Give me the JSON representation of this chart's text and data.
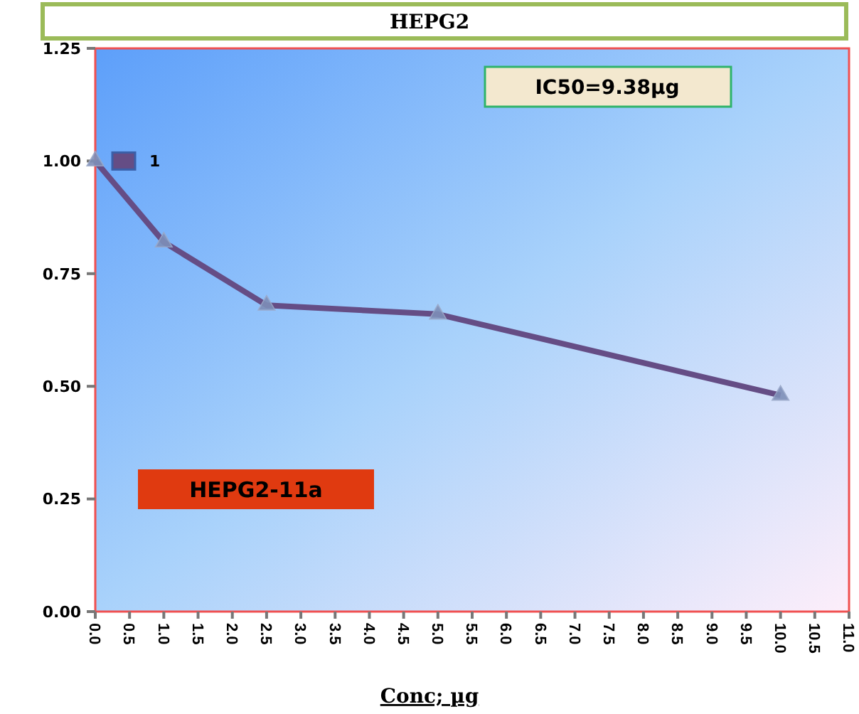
{
  "chart_data": {
    "type": "line",
    "title": "HEPG2",
    "xlabel": "Conc; µg",
    "x": [
      0,
      1,
      2.5,
      5,
      10
    ],
    "series": [
      {
        "name": "1",
        "color": "#654d85",
        "values": [
          1.0,
          0.82,
          0.68,
          0.66,
          0.48
        ]
      }
    ],
    "xlim": [
      0,
      11
    ],
    "xticks": [
      {
        "value": 0,
        "label": "0.0"
      },
      0.5,
      {
        "value": 1,
        "label": "1.0"
      },
      1.5,
      {
        "value": 2,
        "label": "2.0"
      },
      2.5,
      {
        "value": 3,
        "label": "3.0"
      },
      3.5,
      {
        "value": 4,
        "label": "4.0"
      },
      4.5,
      {
        "value": 5,
        "label": "5.0"
      },
      5.5,
      {
        "value": 6,
        "label": "6.0"
      },
      6.5,
      {
        "value": 7,
        "label": "7.0"
      },
      7.5,
      {
        "value": 8,
        "label": "8.0"
      },
      8.5,
      {
        "value": 9,
        "label": "9.0"
      },
      9.5,
      {
        "value": 10,
        "label": "10.0"
      },
      10.5,
      {
        "value": 11,
        "label": "11.0"
      }
    ],
    "ylim": [
      0,
      1.25
    ],
    "yticks": [
      {
        "value": 0,
        "label": "0.00"
      },
      0.25,
      {
        "value": 0.5,
        "label": "0.50"
      },
      0.75,
      {
        "value": 1,
        "label": "1.00"
      },
      1.25
    ],
    "annotations": [
      "IC50=9.38µg",
      "HEPG2-11a"
    ],
    "marker": "triangle",
    "legend": "top left",
    "grid": false
  }
}
